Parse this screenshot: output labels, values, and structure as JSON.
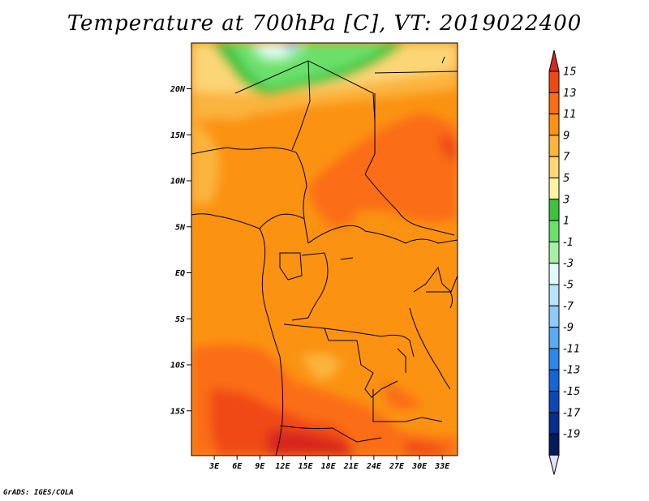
{
  "title": "Temperature at 700hPa [C], VT: 2019022400",
  "credit": "GrADS: IGES/COLA",
  "lat_labels": [
    "20N",
    "15N",
    "10N",
    "5N",
    "EQ",
    "5S",
    "10S",
    "15S"
  ],
  "lon_labels": [
    "3E",
    "6E",
    "9E",
    "12E",
    "15E",
    "18E",
    "21E",
    "24E",
    "27E",
    "30E",
    "33E"
  ],
  "colorbar": {
    "labels": [
      "15",
      "13",
      "11",
      "9",
      "7",
      "5",
      "3",
      "1",
      "-1",
      "-3",
      "-5",
      "-7",
      "-9",
      "-11",
      "-13",
      "-15",
      "-17",
      "-19"
    ],
    "colors": [
      "#d8281f",
      "#f04a14",
      "#fb6d12",
      "#fb9212",
      "#fbb43c",
      "#fcd576",
      "#fbf2a6",
      "#3fc33f",
      "#6be06b",
      "#a6f0a6",
      "#e0fbf8",
      "#b9e2fb",
      "#8ccbfa",
      "#5aaaf2",
      "#2c88ea",
      "#1466d8",
      "#0a48b8",
      "#062d90",
      "#021a5e",
      "#e4e0fa"
    ]
  },
  "chart_data": {
    "type": "heatmap",
    "title": "Temperature at 700hPa [C], VT: 2019022400",
    "variable": "Temperature at 700hPa",
    "units": "C",
    "valid_time": "2019022400",
    "x_ticks": [
      "3E",
      "6E",
      "9E",
      "12E",
      "15E",
      "18E",
      "21E",
      "24E",
      "27E",
      "30E",
      "33E"
    ],
    "y_ticks": [
      "20N",
      "15N",
      "10N",
      "5N",
      "EQ",
      "5S",
      "10S",
      "15S"
    ],
    "lon_range": [
      0,
      35
    ],
    "lat_range": [
      -20,
      24
    ],
    "color_scale_levels": [
      15,
      13,
      11,
      9,
      7,
      5,
      3,
      1,
      -1,
      -3,
      -5,
      -7,
      -9,
      -11,
      -13,
      -15,
      -17,
      -19
    ]
  }
}
